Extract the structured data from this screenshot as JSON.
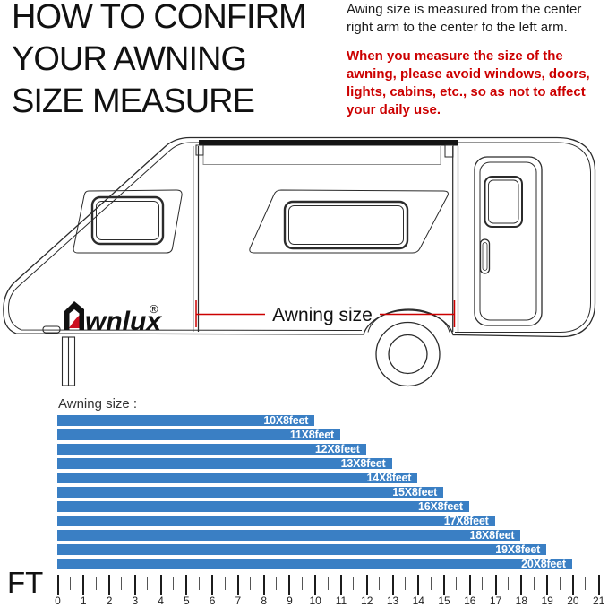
{
  "header": {
    "title_lines": [
      "HOW TO CONFIRM",
      "YOUR AWNING",
      "SIZE MEASURE"
    ],
    "intro_text": "Awing size is measured from the center right arm to the center fo the left arm.",
    "warning_text": "When you measure the size of the awning, please avoid windows, doors, lights, cabins, etc., so as not to affect your daily use.",
    "warning_color": "#cc0000"
  },
  "diagram": {
    "brand": "wnlux",
    "brand_initial": "A",
    "brand_mark": "®",
    "dimension_label": "Awning size",
    "dimension_line_color": "#cc0000",
    "brand_accent_color": "#cc1122",
    "line_color": "#2b2b2b"
  },
  "chart_data": {
    "type": "bar",
    "orientation": "horizontal",
    "title": "Awning size :",
    "categories": [
      "10X8feet",
      "11X8feet",
      "12X8feet",
      "13X8feet",
      "14X8feet",
      "15X8feet",
      "16X8feet",
      "17X8feet",
      "18X8feet",
      "19X8feet",
      "20X8feet"
    ],
    "values": [
      10,
      11,
      12,
      13,
      14,
      15,
      16,
      17,
      18,
      19,
      20
    ],
    "value_unit": "feet",
    "xlabel": "FT",
    "axis": {
      "min": 0,
      "max": 21,
      "major_step": 1,
      "minor_step": 0.5
    },
    "tick_labels": [
      "0",
      "1",
      "2",
      "3",
      "4",
      "5",
      "6",
      "7",
      "8",
      "9",
      "10",
      "11",
      "12",
      "13",
      "14",
      "15",
      "16",
      "17",
      "18",
      "19",
      "20",
      "21"
    ],
    "bar_color": "#3a7fc4",
    "label_color": "#ffffff",
    "grid": false,
    "legend": false
  }
}
